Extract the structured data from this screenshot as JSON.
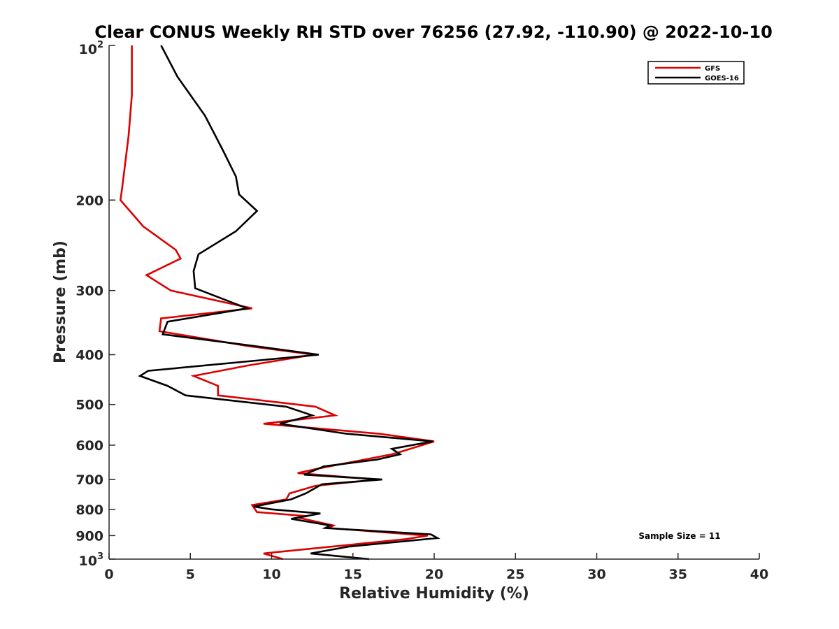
{
  "chart_data": {
    "type": "line",
    "title": "Clear CONUS Weekly RH STD over 76256 (27.92, -110.90) @ 2022-10-10",
    "xlabel": "Relative Humidity (%)",
    "ylabel": "Pressure (mb)",
    "xlim": [
      0,
      40
    ],
    "ylim": [
      100,
      1000
    ],
    "y_scale": "log",
    "y_reversed": true,
    "x_ticks": [
      0,
      5,
      10,
      15,
      20,
      25,
      30,
      35,
      40
    ],
    "x_tick_labels": [
      "0",
      "5",
      "10",
      "15",
      "20",
      "25",
      "30",
      "35",
      "40"
    ],
    "y_ticks": [
      200,
      300,
      400,
      500,
      600,
      700,
      800,
      900
    ],
    "y_tick_labels": [
      "200",
      "300",
      "400",
      "500",
      "600",
      "700",
      "800",
      "900"
    ],
    "y_end_labels": {
      "top_base": "10",
      "top_exp": "2",
      "bottom_base": "10",
      "bottom_exp": "3"
    },
    "legend": {
      "position": "top-right",
      "entries": [
        "GFS",
        "GOES-16"
      ]
    },
    "annotation": "Sample Size = 11",
    "series": [
      {
        "name": "GFS",
        "color": "#dd0000",
        "points": [
          [
            1.4,
            100
          ],
          [
            1.4,
            125
          ],
          [
            1.2,
            150
          ],
          [
            0.8,
            190
          ],
          [
            0.7,
            200
          ],
          [
            2.1,
            225
          ],
          [
            4.1,
            250
          ],
          [
            4.4,
            260
          ],
          [
            2.3,
            280
          ],
          [
            3.8,
            300
          ],
          [
            8.8,
            325
          ],
          [
            3.2,
            340
          ],
          [
            3.1,
            360
          ],
          [
            8.6,
            385
          ],
          [
            12.6,
            400
          ],
          [
            8.5,
            420
          ],
          [
            5.2,
            440
          ],
          [
            6.7,
            460
          ],
          [
            6.7,
            480
          ],
          [
            12.7,
            505
          ],
          [
            13.9,
            525
          ],
          [
            9.5,
            545
          ],
          [
            16.6,
            570
          ],
          [
            20.0,
            590
          ],
          [
            17.8,
            620
          ],
          [
            17.4,
            625
          ],
          [
            13.0,
            665
          ],
          [
            11.6,
            680
          ],
          [
            16.5,
            700
          ],
          [
            12.7,
            720
          ],
          [
            11.1,
            745
          ],
          [
            10.9,
            765
          ],
          [
            8.8,
            785
          ],
          [
            9.1,
            810
          ],
          [
            12.2,
            825
          ],
          [
            11.6,
            830
          ],
          [
            13.8,
            860
          ],
          [
            13.5,
            870
          ],
          [
            19.6,
            900
          ],
          [
            18.2,
            915
          ],
          [
            9.5,
            975
          ],
          [
            10.7,
            1000
          ]
        ]
      },
      {
        "name": "GOES-16",
        "color": "#000000",
        "points": [
          [
            3.2,
            100
          ],
          [
            4.2,
            115
          ],
          [
            5.9,
            137
          ],
          [
            7.0,
            160
          ],
          [
            7.8,
            180
          ],
          [
            8.0,
            195
          ],
          [
            9.1,
            210
          ],
          [
            7.8,
            230
          ],
          [
            5.5,
            255
          ],
          [
            5.2,
            275
          ],
          [
            5.3,
            297
          ],
          [
            8.5,
            325
          ],
          [
            3.6,
            345
          ],
          [
            3.3,
            365
          ],
          [
            9.0,
            385
          ],
          [
            12.9,
            400
          ],
          [
            2.4,
            430
          ],
          [
            1.9,
            440
          ],
          [
            3.6,
            460
          ],
          [
            4.7,
            480
          ],
          [
            10.9,
            505
          ],
          [
            12.5,
            525
          ],
          [
            10.5,
            545
          ],
          [
            14.6,
            570
          ],
          [
            19.9,
            590
          ],
          [
            17.4,
            610
          ],
          [
            17.9,
            625
          ],
          [
            16.5,
            640
          ],
          [
            13.2,
            660
          ],
          [
            12.0,
            685
          ],
          [
            16.8,
            700
          ],
          [
            13.1,
            715
          ],
          [
            12.1,
            745
          ],
          [
            11.2,
            765
          ],
          [
            8.9,
            790
          ],
          [
            10.0,
            800
          ],
          [
            13.0,
            815
          ],
          [
            11.2,
            835
          ],
          [
            13.6,
            860
          ],
          [
            13.3,
            870
          ],
          [
            19.8,
            895
          ],
          [
            20.2,
            910
          ],
          [
            14.8,
            945
          ],
          [
            12.4,
            975
          ],
          [
            16.0,
            1000
          ]
        ]
      }
    ]
  }
}
